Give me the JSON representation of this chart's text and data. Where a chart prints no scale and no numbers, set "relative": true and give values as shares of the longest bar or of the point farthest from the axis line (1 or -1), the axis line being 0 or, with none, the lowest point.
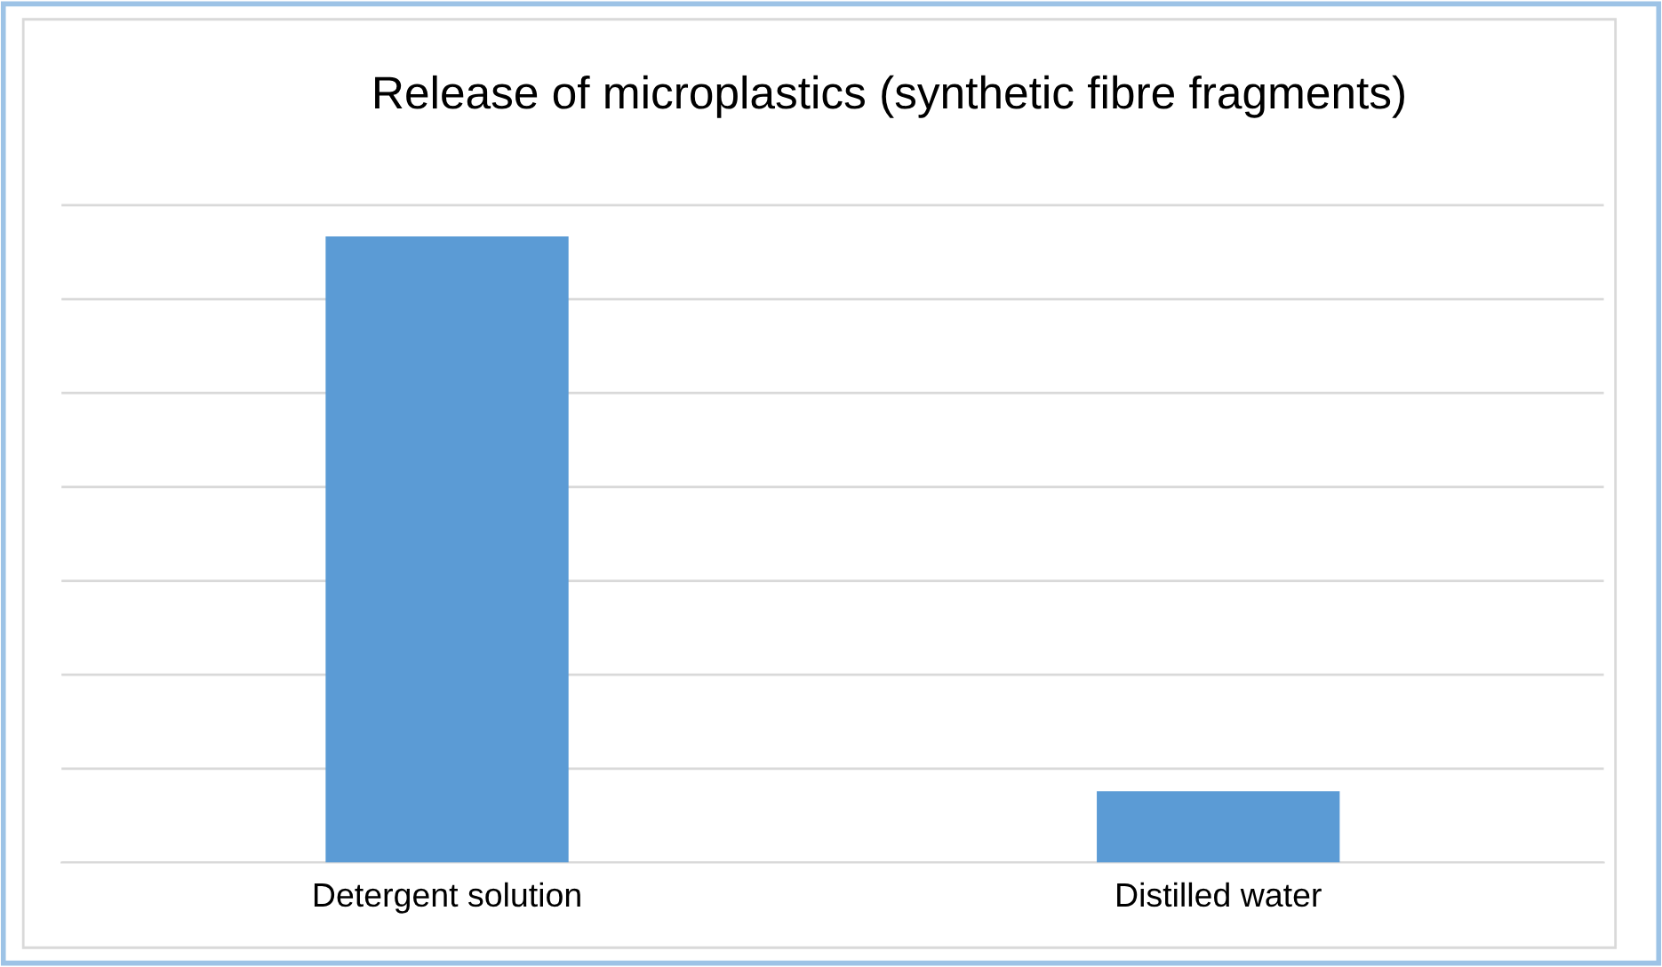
{
  "chart_data": {
    "type": "bar",
    "title": "Release of microplastics (synthetic fibre fragments)",
    "categories": [
      "Detergent solution",
      "Distilled water"
    ],
    "values": [
      1,
      0.114
    ],
    "color": "#5b9bd5",
    "relative": true,
    "grid": "y",
    "legend": false
  }
}
